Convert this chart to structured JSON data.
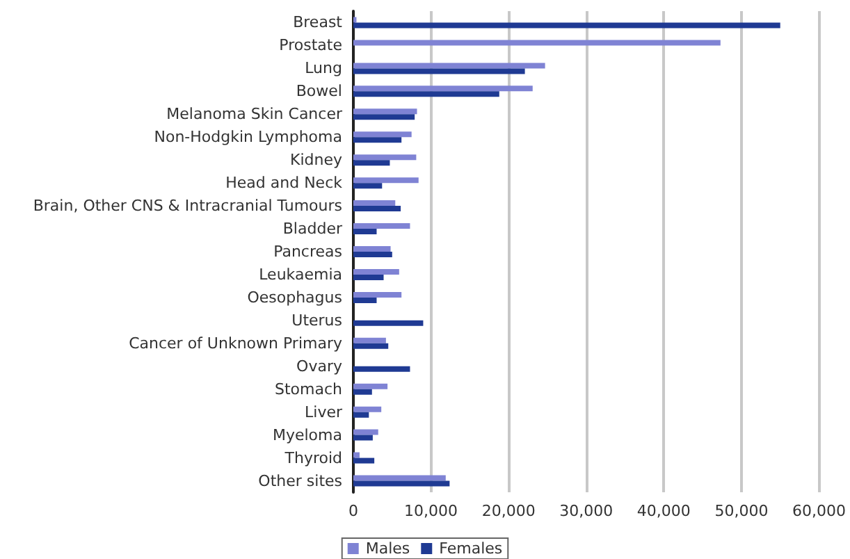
{
  "chart_data": {
    "type": "bar",
    "orientation": "horizontal",
    "categories": [
      "Breast",
      "Prostate",
      "Lung",
      "Bowel",
      "Melanoma Skin Cancer",
      "Non-Hodgkin Lymphoma",
      "Kidney",
      "Head and Neck",
      "Brain, Other CNS & Intracranial Tumours",
      "Bladder",
      "Pancreas",
      "Leukaemia",
      "Oesophagus",
      "Uterus",
      "Cancer of Unknown Primary",
      "Ovary",
      "Stomach",
      "Liver",
      "Myeloma",
      "Thyroid",
      "Other sites"
    ],
    "series": [
      {
        "name": "Males",
        "color": "#7f83d4",
        "values": [
          400,
          47300,
          24700,
          23100,
          8200,
          7500,
          8100,
          8400,
          5400,
          7300,
          4800,
          5900,
          6200,
          null,
          4200,
          null,
          4400,
          3600,
          3200,
          800,
          11900
        ]
      },
      {
        "name": "Females",
        "color": "#1f3a93",
        "values": [
          55000,
          null,
          22100,
          18800,
          7900,
          6200,
          4700,
          3700,
          6100,
          3000,
          5000,
          3900,
          3000,
          9000,
          4500,
          7300,
          2400,
          2000,
          2500,
          2700,
          12400
        ]
      }
    ],
    "xlim": [
      0,
      60000
    ],
    "xticks": [
      0,
      {
        "value": 10000,
        "label": "10,000"
      },
      {
        "value": 20000,
        "label": "20,000"
      },
      {
        "value": 30000,
        "label": "30,000"
      },
      {
        "value": 40000,
        "label": "40,000"
      },
      {
        "value": 50000,
        "label": "50,000"
      },
      {
        "value": 60000,
        "label": "60,000"
      }
    ],
    "grid": "x",
    "legend": "bottom"
  }
}
